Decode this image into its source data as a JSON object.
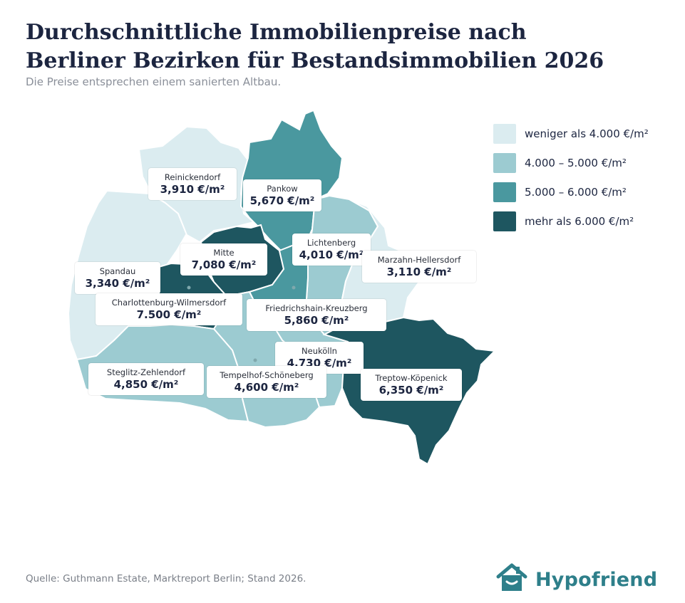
{
  "title": "Durchschnittliche Immobilienpreise nach Berliner Bezirken für Bestandsimmobilien 2026",
  "subtitle": "Die Preise entsprechen einem sanierten Altbau.",
  "source": "Quelle: Guthmann Estate, Marktreport Berlin; Stand 2026.",
  "brand": {
    "name": "Hypofriend",
    "color": "#2e7f8a",
    "icon": "house-icon"
  },
  "colors": {
    "lt4000": "#dbecf0",
    "c4000_5000": "#9ccbd1",
    "c5000_6000": "#4a989f",
    "gt6000": "#1e5660"
  },
  "legend": [
    {
      "label": "weniger als 4.000 €/m²",
      "color": "#dbecf0"
    },
    {
      "label": "4.000 – 5.000 €/m²",
      "color": "#9ccbd1"
    },
    {
      "label": "5.000 – 6.000 €/m²",
      "color": "#4a989f"
    },
    {
      "label": "mehr als 6.000 €/m²",
      "color": "#1e5660"
    }
  ],
  "districts": [
    {
      "name": "Reinickendorf",
      "price": "3,910 €/m²",
      "value": 3910,
      "class": "lt4000"
    },
    {
      "name": "Pankow",
      "price": "5,670 €/m²",
      "value": 5670,
      "class": "c5000_6000"
    },
    {
      "name": "Lichtenberg",
      "price": "4,010 €/m²",
      "value": 4010,
      "class": "c4000_5000"
    },
    {
      "name": "Marzahn-Hellersdorf",
      "price": "3,110 €/m²",
      "value": 3110,
      "class": "lt4000"
    },
    {
      "name": "Mitte",
      "price": "7,080 €/m²",
      "value": 7080,
      "class": "gt6000"
    },
    {
      "name": "Spandau",
      "price": "3,340 €/m²",
      "value": 3340,
      "class": "lt4000"
    },
    {
      "name": "Charlottenburg-Wilmersdorf",
      "price": "7.500 €/m²",
      "value": 7500,
      "class": "gt6000"
    },
    {
      "name": "Friedrichshain-Kreuzberg",
      "price": "5,860 €/m²",
      "value": 5860,
      "class": "c5000_6000"
    },
    {
      "name": "Neukölln",
      "price": "4,730 €/m²",
      "value": 4730,
      "class": "c4000_5000"
    },
    {
      "name": "Steglitz-Zehlendorf",
      "price": "4,850 €/m²",
      "value": 4850,
      "class": "c4000_5000"
    },
    {
      "name": "Tempelhof-Schöneberg",
      "price": "4,600 €/m²",
      "value": 4600,
      "class": "c4000_5000"
    },
    {
      "name": "Treptow-Köpenick",
      "price": "6,350 €/m²",
      "value": 6350,
      "class": "gt6000"
    }
  ]
}
